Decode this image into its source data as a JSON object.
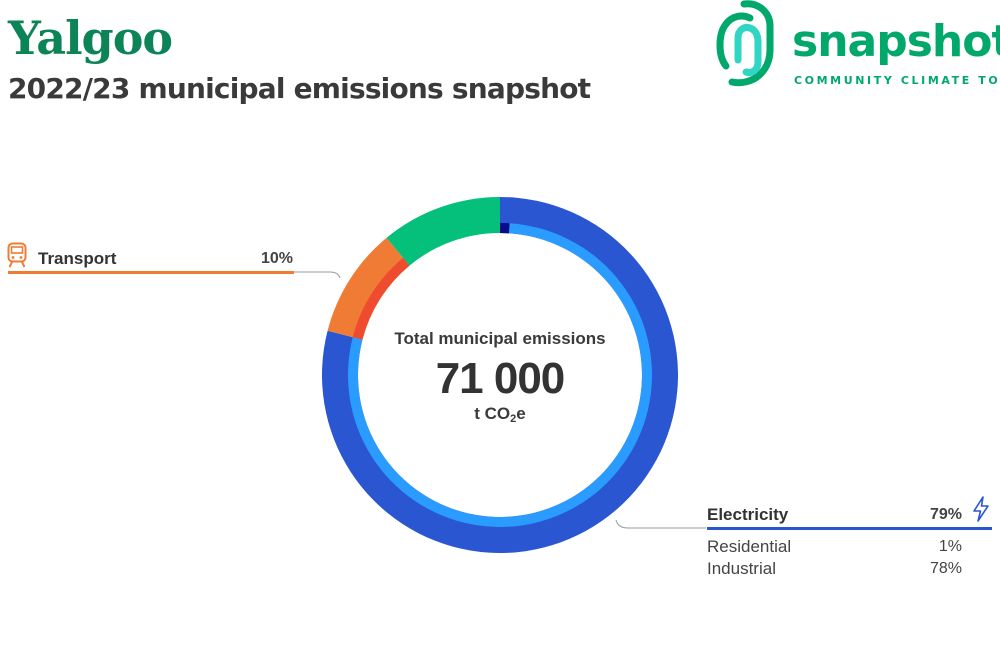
{
  "header": {
    "title": "Yalgoo",
    "subtitle": "2022/23 municipal emissions snapshot"
  },
  "logo": {
    "wordmark": "snapshot",
    "tagline": "COMMUNITY CLIMATE TOOL",
    "color": "#00a86b",
    "accent": "#2fd6c4"
  },
  "colors": {
    "title": "#0d8457",
    "transport": "#f07b34",
    "transport_inner": "#ef4b2f",
    "electricity": "#2a56d1",
    "electricity_inner": "#2a9bff",
    "other": "#05c07a",
    "residential_inner": "#070d8a",
    "leader": "#9a9a9a"
  },
  "center": {
    "label": "Total municipal emissions",
    "value": "71 000",
    "unit_prefix": "t CO",
    "unit_sub": "2",
    "unit_suffix": "e"
  },
  "legend": {
    "transport": {
      "label": "Transport",
      "pct": "10%",
      "icon": "train-icon"
    },
    "electricity": {
      "label": "Electricity",
      "pct": "79%",
      "icon": "lightning-icon",
      "subs": [
        {
          "label": "Residential",
          "pct": "1%"
        },
        {
          "label": "Industrial",
          "pct": "78%"
        }
      ]
    }
  },
  "chart_data": {
    "type": "pie",
    "center_label": "Total municipal emissions",
    "total": 71000,
    "unit": "t CO2e",
    "sectors": [
      {
        "name": "Electricity",
        "value": 79,
        "color": "#2a56d1",
        "subsectors": [
          {
            "name": "Residential",
            "value": 1,
            "color": "#070d8a"
          },
          {
            "name": "Industrial",
            "value": 78,
            "color": "#2a9bff"
          }
        ]
      },
      {
        "name": "Transport",
        "value": 10,
        "color": "#f07b34",
        "subsectors": [
          {
            "name": "",
            "value": 10,
            "color": "#ef4b2f"
          }
        ]
      },
      {
        "name": "",
        "value": 11,
        "color": "#05c07a",
        "subsectors": []
      }
    ]
  }
}
